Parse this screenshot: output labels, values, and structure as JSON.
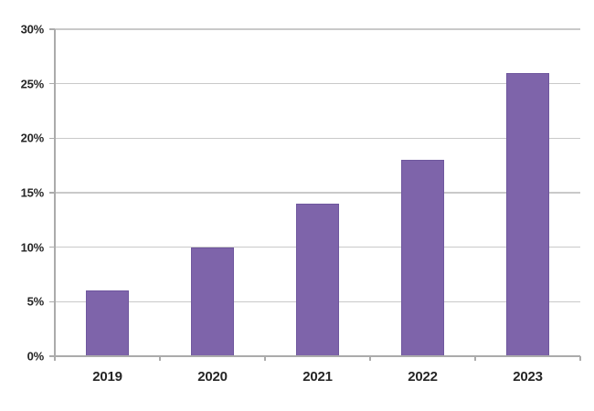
{
  "chart_data": {
    "type": "bar",
    "title": "",
    "xlabel": "",
    "ylabel": "",
    "categories": [
      "2019",
      "2020",
      "2021",
      "2022",
      "2023"
    ],
    "values": [
      6,
      10,
      14,
      18,
      26
    ],
    "value_unit": "%",
    "ylim": [
      0,
      30
    ],
    "ytick_step": 5,
    "ytick_labels": [
      "0%",
      "5%",
      "10%",
      "15%",
      "20%",
      "25%",
      "30%"
    ],
    "grid": "horizontal",
    "legend": "none",
    "colors": {
      "bar_fill": "#7E64AA",
      "bar_border": "#6F579E",
      "gridline": "#C9C9C9",
      "axis_line": "#ABABAB",
      "tick_label": "#262626",
      "background": "#FFFFFF"
    }
  }
}
